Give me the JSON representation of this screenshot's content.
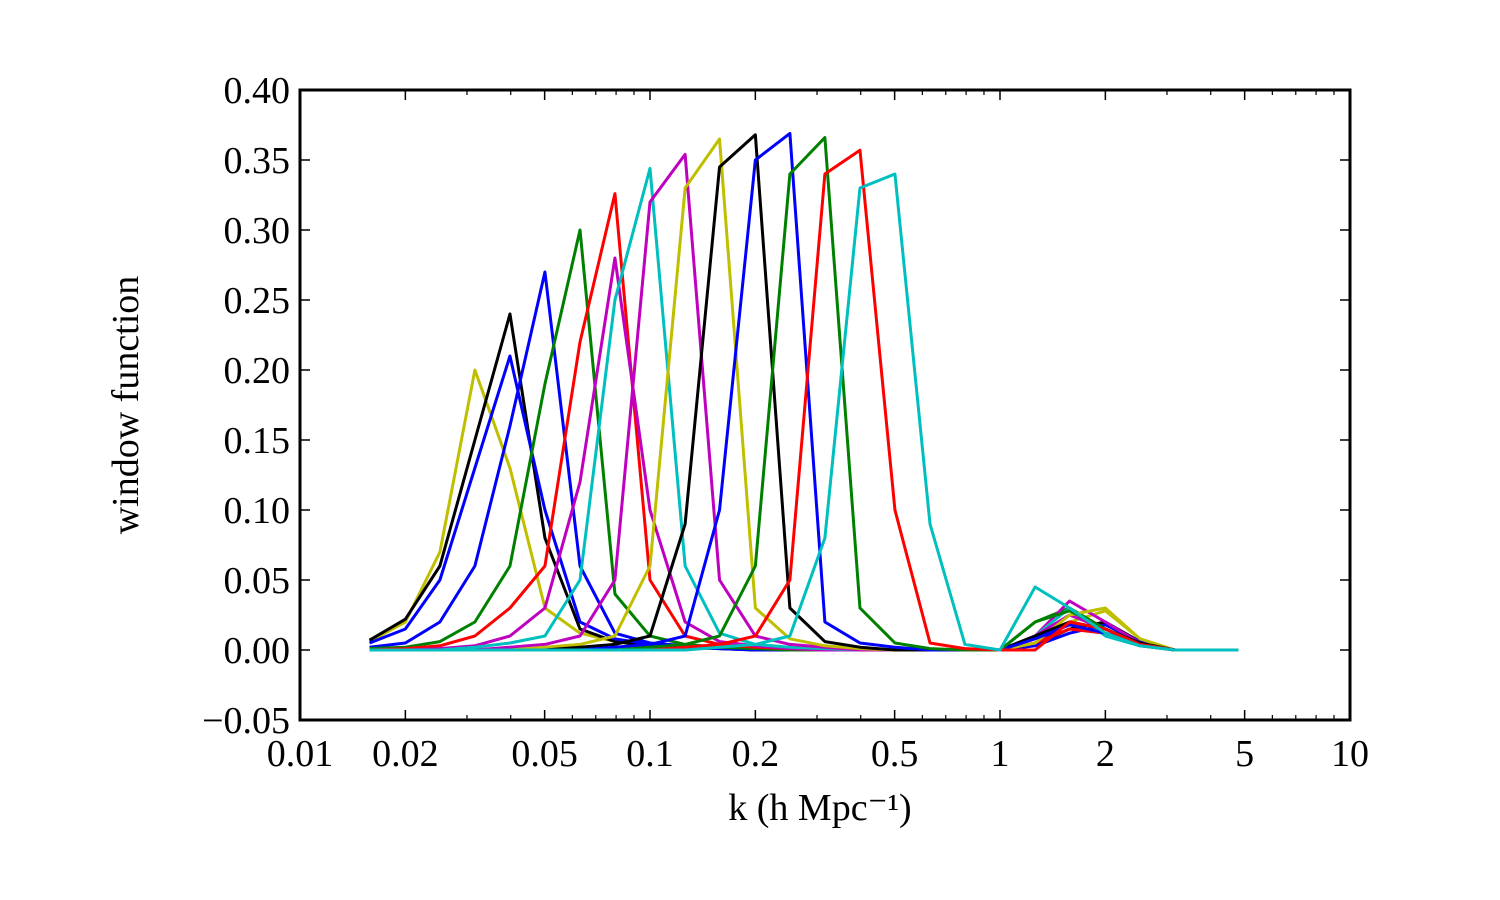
{
  "chart_data": {
    "type": "line",
    "xlabel": "k (h Mpc⁻¹)",
    "ylabel": "window function",
    "log_x": true,
    "xlim": [
      0.01,
      10
    ],
    "ylim": [
      -0.05,
      0.4
    ],
    "xticks": [
      0.01,
      0.02,
      0.05,
      0.1,
      0.2,
      0.5,
      1,
      2,
      5,
      10
    ],
    "xminorticks": [
      0.03,
      0.04,
      0.06,
      0.07,
      0.08,
      0.09,
      0.3,
      0.4,
      0.6,
      0.7,
      0.8,
      0.9,
      3,
      4,
      6,
      7,
      8,
      9
    ],
    "yticks": [
      {
        "value": -0.05,
        "label": "−0.05"
      },
      {
        "value": 0,
        "label": "0.00"
      },
      {
        "value": 0.05,
        "label": "0.05"
      },
      {
        "value": 0.1,
        "label": "0.10"
      },
      {
        "value": 0.15,
        "label": "0.15"
      },
      {
        "value": 0.2,
        "label": "0.20"
      },
      {
        "value": 0.25,
        "label": "0.25"
      },
      {
        "value": 0.3,
        "label": "0.30"
      },
      {
        "value": 0.35,
        "label": "0.35"
      },
      {
        "value": 0.4,
        "label": "0.40"
      }
    ],
    "x": [
      0.0158,
      0.02,
      0.0251,
      0.0316,
      0.0398,
      0.0501,
      0.0631,
      0.0794,
      0.1,
      0.126,
      0.158,
      0.2,
      0.251,
      0.316,
      0.398,
      0.501,
      0.631,
      0.794,
      1,
      1.26,
      1.58,
      2,
      2.51,
      3.16,
      3.98,
      4.8
    ],
    "series": [
      {
        "color": "#bfbf00",
        "values": [
          0.006,
          0.02,
          0.07,
          0.2,
          0.13,
          0.03,
          0.012,
          0.006,
          0.003,
          0.002,
          0.001,
          0.001,
          0,
          0,
          0,
          0,
          0,
          0,
          0,
          0.004,
          0.02,
          0.028,
          0.008,
          0,
          0,
          0
        ]
      },
      {
        "color": "#000000",
        "values": [
          0.007,
          0.022,
          0.06,
          0.15,
          0.24,
          0.08,
          0.015,
          0.006,
          0.003,
          0.002,
          0.001,
          0,
          0,
          0,
          0,
          0,
          0,
          0,
          0,
          0.004,
          0.015,
          0.02,
          0.006,
          0,
          0,
          0
        ]
      },
      {
        "color": "#0000ff",
        "values": [
          0.005,
          0.015,
          0.05,
          0.13,
          0.21,
          0.1,
          0.02,
          0.008,
          0.004,
          0.002,
          0.001,
          0,
          0,
          0,
          0,
          0,
          0,
          0,
          0,
          0.003,
          0.012,
          0.018,
          0.006,
          0,
          0,
          0
        ]
      },
      {
        "color": "#0000ff",
        "values": [
          0.002,
          0.005,
          0.02,
          0.06,
          0.16,
          0.27,
          0.06,
          0.012,
          0.005,
          0.003,
          0.002,
          0.001,
          0,
          0,
          0,
          0,
          0,
          0,
          0,
          0.004,
          0.02,
          0.015,
          0.004,
          0,
          0,
          0
        ]
      },
      {
        "color": "#008000",
        "values": [
          0.001,
          0.002,
          0.006,
          0.02,
          0.06,
          0.19,
          0.3,
          0.04,
          0.01,
          0.004,
          0.002,
          0.001,
          0,
          0,
          0,
          0,
          0,
          0,
          0,
          0.02,
          0.03,
          0.015,
          0.004,
          0,
          0,
          0
        ]
      },
      {
        "color": "#ff0000",
        "values": [
          0,
          0.001,
          0.003,
          0.01,
          0.03,
          0.06,
          0.22,
          0.326,
          0.05,
          0.01,
          0.004,
          0.002,
          0.001,
          0,
          0,
          0,
          0,
          0,
          0,
          0.005,
          0.015,
          0.012,
          0.003,
          0,
          0,
          0
        ]
      },
      {
        "color": "#bf00bf",
        "values": [
          0,
          0,
          0.001,
          0.003,
          0.01,
          0.03,
          0.12,
          0.28,
          0.1,
          0.02,
          0.006,
          0.003,
          0.001,
          0,
          0,
          0,
          0,
          0,
          0,
          0.01,
          0.035,
          0.02,
          0.005,
          0,
          0,
          0
        ]
      },
      {
        "color": "#00bfbf",
        "values": [
          0,
          0,
          0,
          0.002,
          0.005,
          0.01,
          0.05,
          0.25,
          0.344,
          0.06,
          0.012,
          0.004,
          0.002,
          0.001,
          0,
          0,
          0,
          0,
          0,
          0.01,
          0.03,
          0.01,
          0.003,
          0,
          0,
          0
        ]
      },
      {
        "color": "#bf00bf",
        "values": [
          0,
          0,
          0,
          0,
          0.002,
          0.004,
          0.01,
          0.05,
          0.32,
          0.354,
          0.05,
          0.01,
          0.004,
          0.002,
          0,
          0,
          0,
          0,
          0,
          0.01,
          0.025,
          0.015,
          0.004,
          0,
          0,
          0
        ]
      },
      {
        "color": "#bfbf00",
        "values": [
          0,
          0,
          0,
          0,
          0,
          0.002,
          0.004,
          0.01,
          0.06,
          0.33,
          0.365,
          0.03,
          0.008,
          0.003,
          0.001,
          0,
          0,
          0,
          0,
          0.005,
          0.025,
          0.03,
          0.008,
          0,
          0,
          0
        ]
      },
      {
        "color": "#000000",
        "values": [
          0,
          0,
          0,
          0,
          0,
          0,
          0.002,
          0.004,
          0.01,
          0.09,
          0.345,
          0.368,
          0.03,
          0.006,
          0.002,
          0,
          0,
          0,
          0,
          0.01,
          0.02,
          0.015,
          0.005,
          0,
          0,
          0
        ]
      },
      {
        "color": "#0000ff",
        "values": [
          0,
          0,
          0,
          0,
          0,
          0,
          0,
          0.002,
          0.004,
          0.01,
          0.1,
          0.35,
          0.369,
          0.02,
          0.005,
          0.002,
          0,
          0,
          0,
          0.008,
          0.018,
          0.012,
          0.004,
          0,
          0,
          0
        ]
      },
      {
        "color": "#008000",
        "values": [
          0,
          0,
          0,
          0,
          0,
          0,
          0,
          0,
          0.002,
          0.004,
          0.01,
          0.06,
          0.34,
          0.366,
          0.03,
          0.005,
          0.001,
          0,
          0,
          0.02,
          0.028,
          0.015,
          0.004,
          0,
          0,
          0
        ]
      },
      {
        "color": "#ff0000",
        "values": [
          0,
          0,
          0,
          0,
          0,
          0,
          0,
          0,
          0,
          0.002,
          0.004,
          0.01,
          0.05,
          0.34,
          0.357,
          0.1,
          0.005,
          0.001,
          0,
          0,
          0.02,
          0.015,
          0.004,
          0,
          0,
          0
        ]
      },
      {
        "color": "#00bfbf",
        "values": [
          0,
          0,
          0,
          0,
          0,
          0,
          0,
          0,
          0,
          0,
          0.002,
          0.004,
          0.01,
          0.08,
          0.33,
          0.34,
          0.09,
          0.004,
          0,
          0.045,
          0.03,
          0.012,
          0.003,
          0,
          0,
          0
        ]
      }
    ]
  }
}
